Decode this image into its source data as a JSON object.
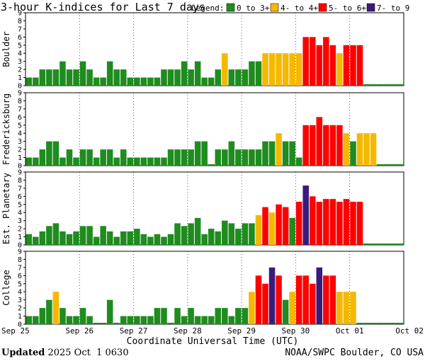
{
  "chart_data": {
    "type": "bar",
    "title": "3-hour K-indices for Last 7 days",
    "legend": {
      "label": "Legend:",
      "placement": "top-right",
      "entries": [
        {
          "label": "0 to 3+",
          "color": "#1e8c1e"
        },
        {
          "label": "4- to 4+",
          "color": "#f5b800"
        },
        {
          "label": "5- to 6+",
          "color": "#ff0000"
        },
        {
          "label": "7- to 9",
          "color": "#3a1a7a"
        }
      ]
    },
    "xlabel": "Coordinate Universal Time (UTC)",
    "x_tick_labels": [
      "Sep 25",
      "Sep 26",
      "Sep 27",
      "Sep 28",
      "Sep 29",
      "Sep 30",
      "Oct 01",
      "Oct 02"
    ],
    "ylim": [
      0,
      9
    ],
    "y_ticks": [
      0,
      1,
      2,
      3,
      4,
      5,
      6,
      7,
      8,
      9
    ],
    "grid": "dotted vertical lines at day boundaries",
    "series": [
      {
        "name": "Boulder",
        "values": [
          1,
          1,
          2,
          2,
          2,
          3,
          2,
          2,
          3,
          2,
          1,
          1,
          3,
          2,
          2,
          1,
          1,
          1,
          1,
          1,
          2,
          2,
          2,
          3,
          2,
          3,
          1,
          1,
          2,
          4,
          2,
          2,
          2,
          3,
          3,
          4,
          4,
          4,
          4,
          4,
          4,
          6,
          6,
          5,
          6,
          5,
          4,
          5,
          5,
          5,
          0,
          0,
          0,
          0,
          0,
          0
        ]
      },
      {
        "name": "Fredericksburg",
        "values": [
          1,
          1,
          2,
          3,
          3,
          1,
          2,
          1,
          2,
          2,
          1,
          2,
          2,
          1,
          2,
          1,
          1,
          1,
          1,
          1,
          1,
          2,
          2,
          2,
          2,
          3,
          3,
          0,
          2,
          2,
          3,
          2,
          2,
          2,
          2,
          3,
          3,
          4,
          3,
          3,
          1,
          5,
          5,
          6,
          5,
          5,
          5,
          4,
          3,
          4,
          4,
          4,
          0,
          0,
          0,
          0
        ]
      },
      {
        "name": "Est. Planetary",
        "values": [
          1.33,
          1,
          1.67,
          2.33,
          2.67,
          1.67,
          1.33,
          1.67,
          2.33,
          2.33,
          1,
          2.33,
          1.67,
          1,
          1.67,
          1.67,
          2,
          1.33,
          1,
          1.33,
          1,
          1.33,
          2.67,
          2.33,
          2.67,
          3.33,
          1.33,
          2,
          1.67,
          3,
          2.67,
          2,
          2.67,
          2.67,
          3.67,
          4.67,
          4,
          5,
          4.67,
          3.33,
          5.33,
          7.33,
          6,
          5.33,
          5.67,
          5.67,
          5.33,
          5.67,
          5.33,
          5.33,
          0,
          0,
          0,
          0,
          0,
          0
        ]
      },
      {
        "name": "College",
        "values": [
          1,
          1,
          2,
          3,
          4,
          2,
          1,
          1,
          2,
          1,
          0,
          0,
          3,
          0,
          1,
          1,
          1,
          1,
          1,
          2,
          2,
          0,
          2,
          1,
          2,
          1,
          1,
          1,
          2,
          2,
          1,
          2,
          2,
          4,
          6,
          5,
          7,
          6,
          3,
          4,
          6,
          6,
          5,
          7,
          6,
          6,
          4,
          4,
          4,
          0,
          0,
          0,
          0,
          0,
          0,
          0
        ]
      }
    ]
  },
  "footer": {
    "updated_label": "Updated",
    "updated_value": "2025 Oct  1 0630",
    "source": "NOAA/SWPC Boulder, CO USA"
  }
}
